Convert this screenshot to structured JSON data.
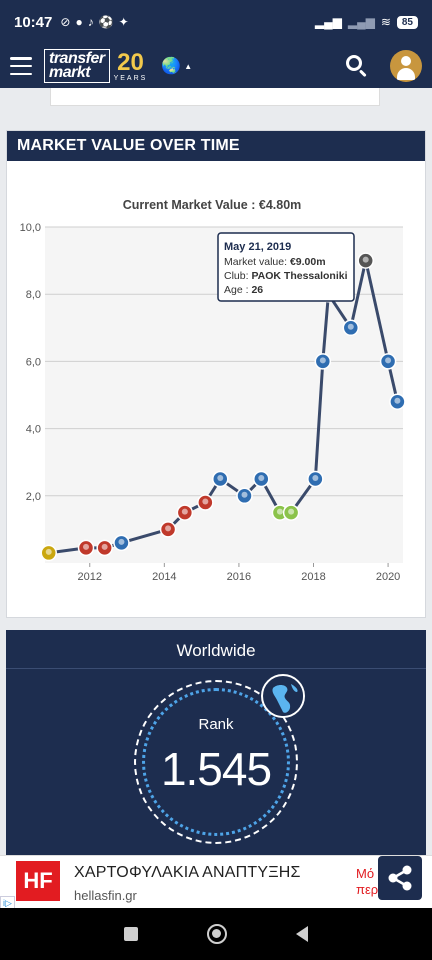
{
  "status_bar": {
    "time": "10:47",
    "battery": "85",
    "notification_icons": [
      "alarm-off-icon",
      "facebook-icon",
      "tiktok-icon",
      "soccer-ball-icon",
      "twitter-icon"
    ]
  },
  "header": {
    "logo_line1": "transfer",
    "logo_line2": "markt",
    "logo_years_number": "20",
    "logo_years_label": "YEARS",
    "accent_color": "#1d2d4f"
  },
  "market_value": {
    "title": "MARKET VALUE OVER TIME",
    "current_label": "Current Market Value : €4.80m"
  },
  "chart_data": {
    "type": "line",
    "y_ticks": [
      "10,0",
      "8,0",
      "6,0",
      "4,0",
      "2,0"
    ],
    "y_tick_values": [
      10,
      8,
      6,
      4,
      2
    ],
    "x_ticks": [
      "2012",
      "2014",
      "2016",
      "2018",
      "2020"
    ],
    "x_tick_values": [
      2012,
      2014,
      2016,
      2018,
      2020
    ],
    "xlim": [
      2010.8,
      2020.4
    ],
    "ylim": [
      0,
      10
    ],
    "grid": true,
    "line_color": "#3a4a6b",
    "points": [
      {
        "x": 2010.9,
        "y": 0.3,
        "color": "#caa70f"
      },
      {
        "x": 2011.9,
        "y": 0.45,
        "color": "#c0392b"
      },
      {
        "x": 2012.4,
        "y": 0.45,
        "color": "#c0392b"
      },
      {
        "x": 2012.85,
        "y": 0.6,
        "color": "#2f6db1"
      },
      {
        "x": 2014.1,
        "y": 1.0,
        "color": "#c0392b"
      },
      {
        "x": 2014.55,
        "y": 1.5,
        "color": "#c0392b"
      },
      {
        "x": 2015.1,
        "y": 1.8,
        "color": "#c0392b"
      },
      {
        "x": 2015.5,
        "y": 2.5,
        "color": "#2f6db1"
      },
      {
        "x": 2016.15,
        "y": 2.0,
        "color": "#2f6db1"
      },
      {
        "x": 2016.6,
        "y": 2.5,
        "color": "#2f6db1"
      },
      {
        "x": 2017.1,
        "y": 1.5,
        "color": "#8bc34a"
      },
      {
        "x": 2017.4,
        "y": 1.5,
        "color": "#8bc34a"
      },
      {
        "x": 2018.05,
        "y": 2.5,
        "color": "#2f6db1"
      },
      {
        "x": 2018.25,
        "y": 6.0,
        "color": "#2f6db1"
      },
      {
        "x": 2018.4,
        "y": 8.0,
        "color": "#9e9e9e"
      },
      {
        "x": 2019.0,
        "y": 7.0,
        "color": "#2f6db1"
      },
      {
        "x": 2019.4,
        "y": 9.0,
        "color": "#555555"
      },
      {
        "x": 2020.0,
        "y": 6.0,
        "color": "#2f6db1"
      },
      {
        "x": 2020.25,
        "y": 4.8,
        "color": "#2f6db1"
      }
    ],
    "tooltip": {
      "date": "May 21, 2019",
      "value_label": "Market value:",
      "value": "€9.00m",
      "club_label": "Club:",
      "club": "PAOK Thessaloniki",
      "age_label": "Age :",
      "age": "26"
    }
  },
  "worldwide": {
    "title": "Worldwide",
    "rank_label": "Rank",
    "rank_value": "1.545"
  },
  "ad": {
    "logo_text": "HF",
    "headline": "ΧΑΡΤΟΦΥΛΑΚΙΑ ΑΝΑΠΤΥΞΗΣ",
    "domain": "hellasfin.gr",
    "side_text_line1": "Μό",
    "side_text_line2": "περ",
    "choices_label": "i▷"
  }
}
